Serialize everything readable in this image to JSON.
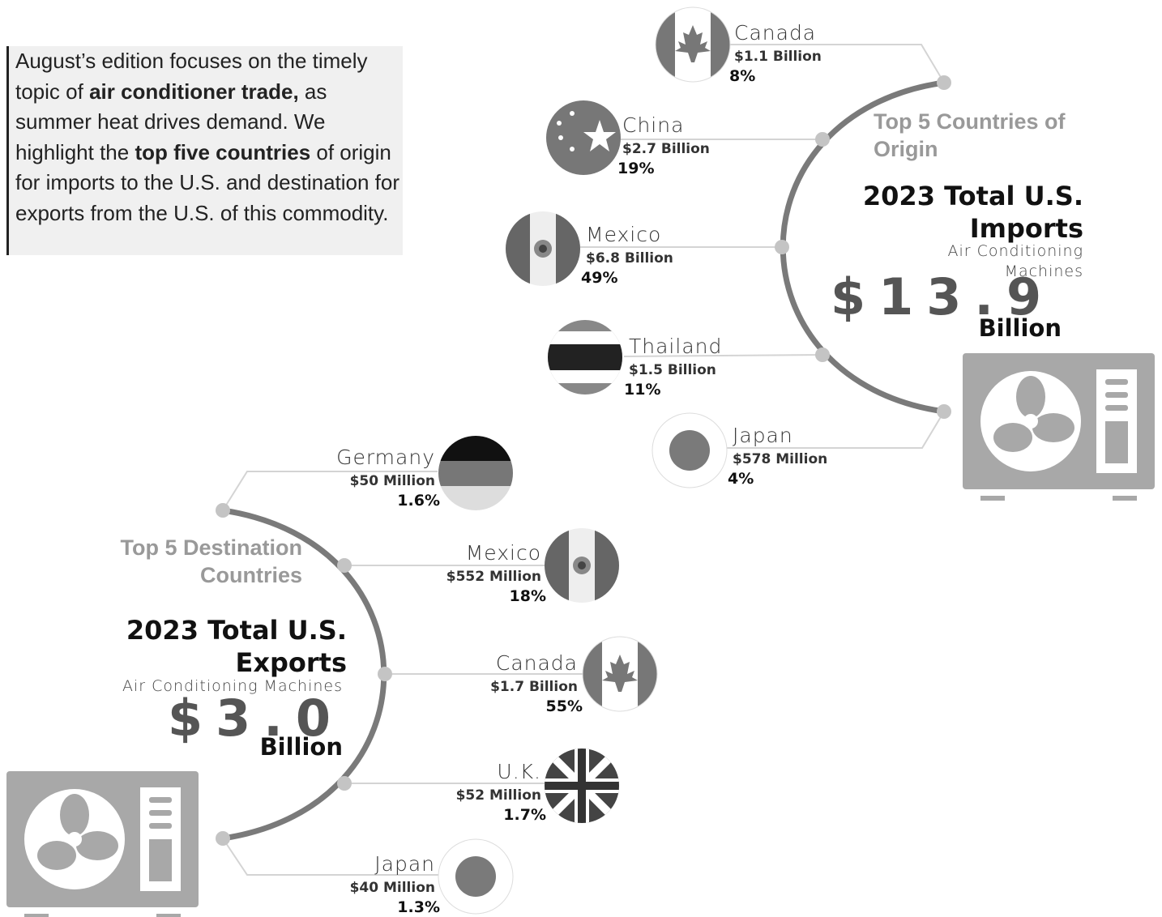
{
  "intro": [
    "August’s edition focuses on the timely topic of ",
    "air conditioner trade,",
    " as summer heat drives demand. We highlight the ",
    "top five countries",
    " of origin for imports  to the U.S. and destination for exports from the U.S. of this commodity."
  ],
  "imports": {
    "heading": "Top 5 Countries of Origin",
    "title": "2023 Total U.S. Imports",
    "subtitle": "Air Conditioning Machines",
    "total": "$13.9",
    "unit": "Billion",
    "countries": [
      {
        "name": "Canada",
        "value": "$1.1 Billion",
        "share": "8%"
      },
      {
        "name": "China",
        "value": "$2.7 Billion",
        "share": "19%"
      },
      {
        "name": "Mexico",
        "value": "$6.8 Billion",
        "share": "49%"
      },
      {
        "name": "Thailand",
        "value": "$1.5 Billion",
        "share": "11%"
      },
      {
        "name": "Japan",
        "value": "$578 Million",
        "share": "4%"
      }
    ]
  },
  "exports": {
    "heading": "Top 5 Destination Countries",
    "title": "2023 Total U.S. Exports",
    "subtitle": "Air Conditioning Machines",
    "total": "$3.0",
    "unit": "Billion",
    "countries": [
      {
        "name": "Germany",
        "value": "$50 Million",
        "share": "1.6%"
      },
      {
        "name": "Mexico",
        "value": "$552 Million",
        "share": "18%"
      },
      {
        "name": "Canada",
        "value": "$1.7 Billion",
        "share": "55%"
      },
      {
        "name": "U.K.",
        "value": "$52 Million",
        "share": "1.7%"
      },
      {
        "name": "Japan",
        "value": "$40 Million",
        "share": "1.3%"
      }
    ]
  }
}
